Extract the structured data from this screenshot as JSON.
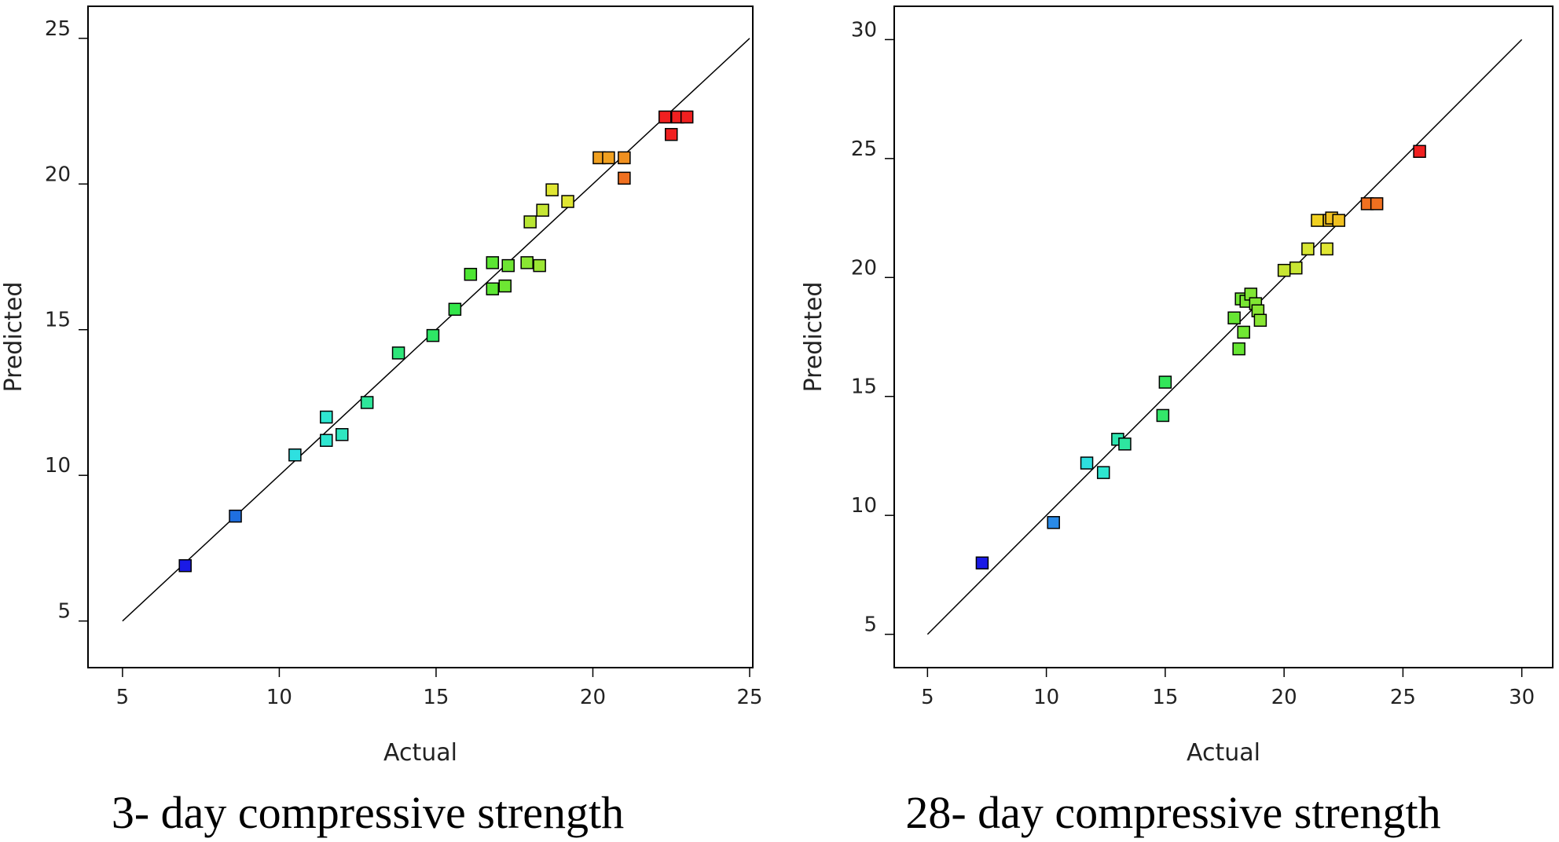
{
  "chart_data": [
    {
      "type": "scatter",
      "caption": "3- day compressive strength",
      "xlabel": "Actual",
      "ylabel": "Predicted",
      "xlim": [
        3.9,
        25.1
      ],
      "ylim": [
        3.4,
        26.1
      ],
      "xticks": [
        5,
        10,
        15,
        20,
        25
      ],
      "yticks": [
        5,
        10,
        15,
        20,
        25
      ],
      "reference_line": [
        [
          5,
          5
        ],
        [
          25,
          25
        ]
      ],
      "points": [
        {
          "x": 7.0,
          "y": 6.9,
          "color": "#1a1ae6"
        },
        {
          "x": 8.6,
          "y": 8.6,
          "color": "#1f6fe0"
        },
        {
          "x": 10.5,
          "y": 10.7,
          "color": "#2ee0e0"
        },
        {
          "x": 11.5,
          "y": 12.0,
          "color": "#2ee6d0"
        },
        {
          "x": 11.5,
          "y": 11.2,
          "color": "#2ee6d0"
        },
        {
          "x": 12.0,
          "y": 11.4,
          "color": "#2ee6c0"
        },
        {
          "x": 12.8,
          "y": 12.5,
          "color": "#2ee69a"
        },
        {
          "x": 13.8,
          "y": 14.2,
          "color": "#2ee67a"
        },
        {
          "x": 14.9,
          "y": 14.8,
          "color": "#2ee665"
        },
        {
          "x": 15.6,
          "y": 15.7,
          "color": "#33e64a"
        },
        {
          "x": 16.1,
          "y": 16.9,
          "color": "#4de633"
        },
        {
          "x": 16.8,
          "y": 17.3,
          "color": "#5ce633"
        },
        {
          "x": 16.8,
          "y": 16.4,
          "color": "#5ce633"
        },
        {
          "x": 17.2,
          "y": 16.5,
          "color": "#6ee633"
        },
        {
          "x": 17.3,
          "y": 17.2,
          "color": "#6ee633"
        },
        {
          "x": 17.9,
          "y": 17.3,
          "color": "#8ae633"
        },
        {
          "x": 18.3,
          "y": 17.2,
          "color": "#9ae633"
        },
        {
          "x": 18.0,
          "y": 18.7,
          "color": "#b8e633"
        },
        {
          "x": 18.4,
          "y": 19.1,
          "color": "#c6e633"
        },
        {
          "x": 18.7,
          "y": 19.8,
          "color": "#e0e633"
        },
        {
          "x": 19.2,
          "y": 19.4,
          "color": "#e0e633"
        },
        {
          "x": 20.2,
          "y": 20.9,
          "color": "#f0a020"
        },
        {
          "x": 20.5,
          "y": 20.9,
          "color": "#f0a020"
        },
        {
          "x": 21.0,
          "y": 20.9,
          "color": "#f09020"
        },
        {
          "x": 21.0,
          "y": 20.2,
          "color": "#f07020"
        },
        {
          "x": 22.3,
          "y": 22.3,
          "color": "#f02020"
        },
        {
          "x": 22.7,
          "y": 22.3,
          "color": "#f02020"
        },
        {
          "x": 23.0,
          "y": 22.3,
          "color": "#f02020"
        },
        {
          "x": 22.5,
          "y": 21.7,
          "color": "#f02020"
        }
      ]
    },
    {
      "type": "scatter",
      "caption": "28- day compressive strength",
      "xlabel": "Actual",
      "ylabel": "Predicted",
      "xlim": [
        3.6,
        31.3
      ],
      "ylim": [
        3.6,
        31.4
      ],
      "xticks": [
        5,
        10,
        15,
        20,
        25,
        30
      ],
      "yticks": [
        5,
        10,
        15,
        20,
        25,
        30
      ],
      "reference_line": [
        [
          5,
          5
        ],
        [
          30,
          30
        ]
      ],
      "points": [
        {
          "x": 7.3,
          "y": 8.0,
          "color": "#1a1ae6"
        },
        {
          "x": 10.3,
          "y": 9.7,
          "color": "#2a8ae6"
        },
        {
          "x": 11.7,
          "y": 12.2,
          "color": "#2ee0e0"
        },
        {
          "x": 12.4,
          "y": 11.8,
          "color": "#2ee6d0"
        },
        {
          "x": 13.0,
          "y": 13.2,
          "color": "#2ee6b0"
        },
        {
          "x": 13.3,
          "y": 13.0,
          "color": "#2ee6a0"
        },
        {
          "x": 14.9,
          "y": 14.2,
          "color": "#33e66a"
        },
        {
          "x": 15.0,
          "y": 15.6,
          "color": "#33e65a"
        },
        {
          "x": 18.1,
          "y": 17.0,
          "color": "#66e633"
        },
        {
          "x": 17.9,
          "y": 18.3,
          "color": "#66e633"
        },
        {
          "x": 18.3,
          "y": 17.7,
          "color": "#70e633"
        },
        {
          "x": 18.2,
          "y": 19.1,
          "color": "#70e633"
        },
        {
          "x": 18.4,
          "y": 19.0,
          "color": "#78e633"
        },
        {
          "x": 18.6,
          "y": 19.3,
          "color": "#80e633"
        },
        {
          "x": 18.8,
          "y": 18.9,
          "color": "#80e633"
        },
        {
          "x": 18.9,
          "y": 18.6,
          "color": "#88e633"
        },
        {
          "x": 19.0,
          "y": 18.2,
          "color": "#88e633"
        },
        {
          "x": 20.0,
          "y": 20.3,
          "color": "#c8e633"
        },
        {
          "x": 20.5,
          "y": 20.4,
          "color": "#c8e633"
        },
        {
          "x": 21.0,
          "y": 21.2,
          "color": "#d8e633"
        },
        {
          "x": 21.8,
          "y": 21.2,
          "color": "#e0e633"
        },
        {
          "x": 21.4,
          "y": 22.4,
          "color": "#f0d020"
        },
        {
          "x": 21.9,
          "y": 22.4,
          "color": "#f0c020"
        },
        {
          "x": 22.0,
          "y": 22.5,
          "color": "#f0c020"
        },
        {
          "x": 22.3,
          "y": 22.4,
          "color": "#f0c020"
        },
        {
          "x": 23.5,
          "y": 23.1,
          "color": "#f07020"
        },
        {
          "x": 23.9,
          "y": 23.1,
          "color": "#f07020"
        },
        {
          "x": 25.7,
          "y": 25.3,
          "color": "#f02020"
        }
      ]
    }
  ]
}
